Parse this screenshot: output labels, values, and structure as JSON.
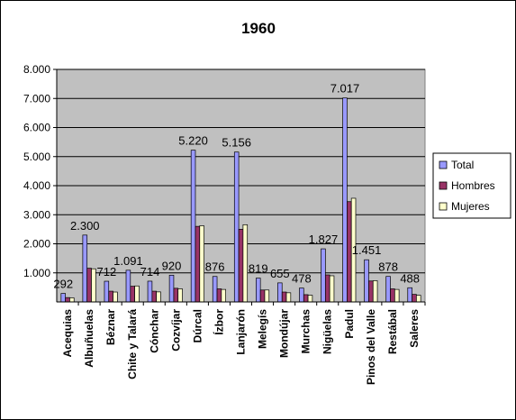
{
  "chart_data": {
    "type": "bar",
    "title": "1960",
    "xlabel": "",
    "ylabel": "",
    "ylim": [
      0,
      8000
    ],
    "y_ticks": [
      1000,
      2000,
      3000,
      4000,
      5000,
      6000,
      7000,
      8000
    ],
    "y_tick_labels": [
      "1.000",
      "2.000",
      "3.000",
      "4.000",
      "5.000",
      "6.000",
      "7.000",
      "8.000"
    ],
    "grid": "horizontal",
    "legend_position": "right",
    "categories": [
      "Acequias",
      "Albuñuelas",
      "Béznar",
      "Chite y Talará",
      "Cónchar",
      "Cozvíjar",
      "Dúrcal",
      "Ízbor",
      "Lanjarón",
      "Melegís",
      "Mondújar",
      "Murchas",
      "Nigüelas",
      "Padul",
      "Pinos del Valle",
      "Restábal",
      "Saleres"
    ],
    "series": [
      {
        "name": "Total",
        "color": "#9999ff",
        "values": [
          292,
          2300,
          712,
          1091,
          714,
          920,
          5220,
          876,
          5156,
          819,
          655,
          478,
          1827,
          7017,
          1451,
          878,
          488
        ]
      },
      {
        "name": "Hombres",
        "color": "#993366",
        "values": [
          150,
          1160,
          370,
          540,
          370,
          470,
          2600,
          450,
          2500,
          410,
          340,
          250,
          930,
          3450,
          720,
          450,
          260
        ]
      },
      {
        "name": "Mujeres",
        "color": "#ffffcc",
        "values": [
          140,
          1140,
          340,
          550,
          345,
          450,
          2620,
          430,
          2656,
          410,
          315,
          230,
          900,
          3567,
          731,
          430,
          230
        ]
      }
    ],
    "data_labels": [
      "292",
      "2.300",
      "712",
      "1.091",
      "714",
      "920",
      "5.220",
      "876",
      "5.156",
      "819",
      "655",
      "478",
      "1.827",
      "7.017",
      "1.451",
      "878",
      "488"
    ]
  }
}
